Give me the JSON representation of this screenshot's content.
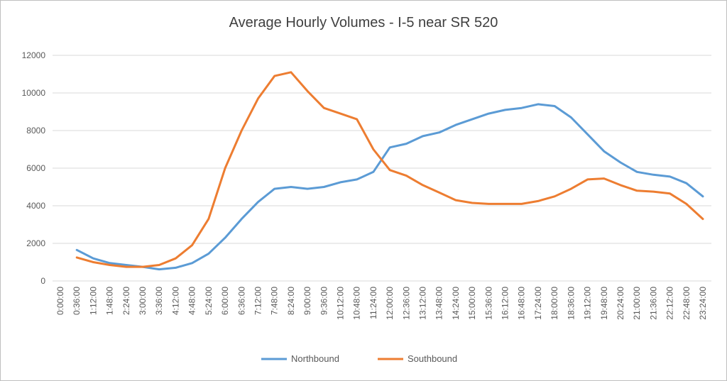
{
  "chart_data": {
    "type": "line",
    "title": "Average Hourly Volumes - I-5 near SR 520",
    "categories": [
      "0:00:00",
      "0:36:00",
      "1:12:00",
      "1:48:00",
      "2:24:00",
      "3:00:00",
      "3:36:00",
      "4:12:00",
      "4:48:00",
      "5:24:00",
      "6:00:00",
      "6:36:00",
      "7:12:00",
      "7:48:00",
      "8:24:00",
      "9:00:00",
      "9:36:00",
      "10:12:00",
      "10:48:00",
      "11:24:00",
      "12:00:00",
      "12:36:00",
      "13:12:00",
      "13:48:00",
      "14:24:00",
      "15:00:00",
      "15:36:00",
      "16:12:00",
      "16:48:00",
      "17:24:00",
      "18:00:00",
      "18:36:00",
      "19:12:00",
      "19:48:00",
      "20:24:00",
      "21:00:00",
      "21:36:00",
      "22:12:00",
      "22:48:00",
      "23:24:00"
    ],
    "series": [
      {
        "name": "Northbound",
        "color": "#5b9bd5",
        "values": [
          null,
          1650,
          1200,
          950,
          850,
          750,
          620,
          700,
          950,
          1450,
          2300,
          3300,
          4200,
          4900,
          5000,
          4900,
          5000,
          5250,
          5400,
          5800,
          7100,
          7300,
          7700,
          7900,
          8300,
          8600,
          8900,
          9100,
          9200,
          9400,
          9300,
          8700,
          7800,
          6900,
          6300,
          5800,
          5650,
          5550,
          5200,
          4500
        ]
      },
      {
        "name": "Southbound",
        "color": "#ed7d31",
        "values": [
          null,
          1250,
          1000,
          850,
          750,
          750,
          850,
          1200,
          1900,
          3300,
          6000,
          8000,
          9700,
          10900,
          11100,
          10100,
          9200,
          8900,
          8600,
          7000,
          5900,
          5600,
          5100,
          4700,
          4300,
          4150,
          4100,
          4100,
          4100,
          4250,
          4500,
          4900,
          5400,
          5450,
          5100,
          4800,
          4750,
          4650,
          4100,
          3300
        ]
      }
    ],
    "ylim": [
      0,
      12000
    ],
    "yticks": [
      0,
      2000,
      4000,
      6000,
      8000,
      10000,
      12000
    ],
    "grid": true,
    "legend": "bottom"
  }
}
